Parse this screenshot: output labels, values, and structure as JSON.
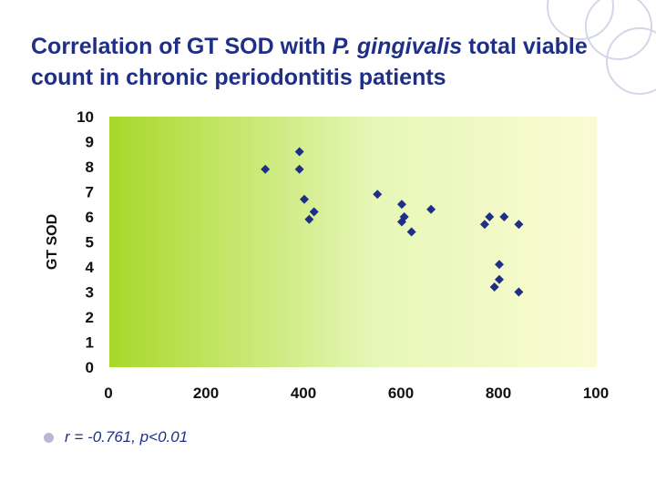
{
  "title": {
    "part1": "Correlation of GT SOD with ",
    "species": "P. gingivalis",
    "part2": " total viable count in chronic periodontitis patients"
  },
  "bullet": "r = -0.761, p<0.01",
  "colors": {
    "title": "#1f2f86",
    "marker": "#1f2f86",
    "gradient_left": "#a8d82a",
    "gradient_mid": "#e6f7b8",
    "gradient_right": "#fbfbd3"
  },
  "chart_data": {
    "type": "scatter",
    "xlabel": "",
    "ylabel": "GT SOD",
    "xlim": [
      0,
      1000
    ],
    "ylim": [
      0,
      10
    ],
    "x_ticks": [
      "0",
      "200",
      "400",
      "600",
      "800",
      "100"
    ],
    "y_ticks": [
      "0",
      "1",
      "2",
      "3",
      "4",
      "5",
      "6",
      "7",
      "8",
      "9",
      "10"
    ],
    "grid": false,
    "points": [
      {
        "x": 320,
        "y": 7.9
      },
      {
        "x": 390,
        "y": 8.6
      },
      {
        "x": 390,
        "y": 7.9
      },
      {
        "x": 400,
        "y": 6.7
      },
      {
        "x": 420,
        "y": 6.2
      },
      {
        "x": 410,
        "y": 5.9
      },
      {
        "x": 550,
        "y": 6.9
      },
      {
        "x": 600,
        "y": 6.5
      },
      {
        "x": 605,
        "y": 6.0
      },
      {
        "x": 600,
        "y": 5.8
      },
      {
        "x": 620,
        "y": 5.4
      },
      {
        "x": 660,
        "y": 6.3
      },
      {
        "x": 780,
        "y": 6.0
      },
      {
        "x": 770,
        "y": 5.7
      },
      {
        "x": 810,
        "y": 6.0
      },
      {
        "x": 840,
        "y": 5.7
      },
      {
        "x": 800,
        "y": 4.1
      },
      {
        "x": 800,
        "y": 3.5
      },
      {
        "x": 790,
        "y": 3.2
      },
      {
        "x": 840,
        "y": 3.0
      }
    ]
  }
}
